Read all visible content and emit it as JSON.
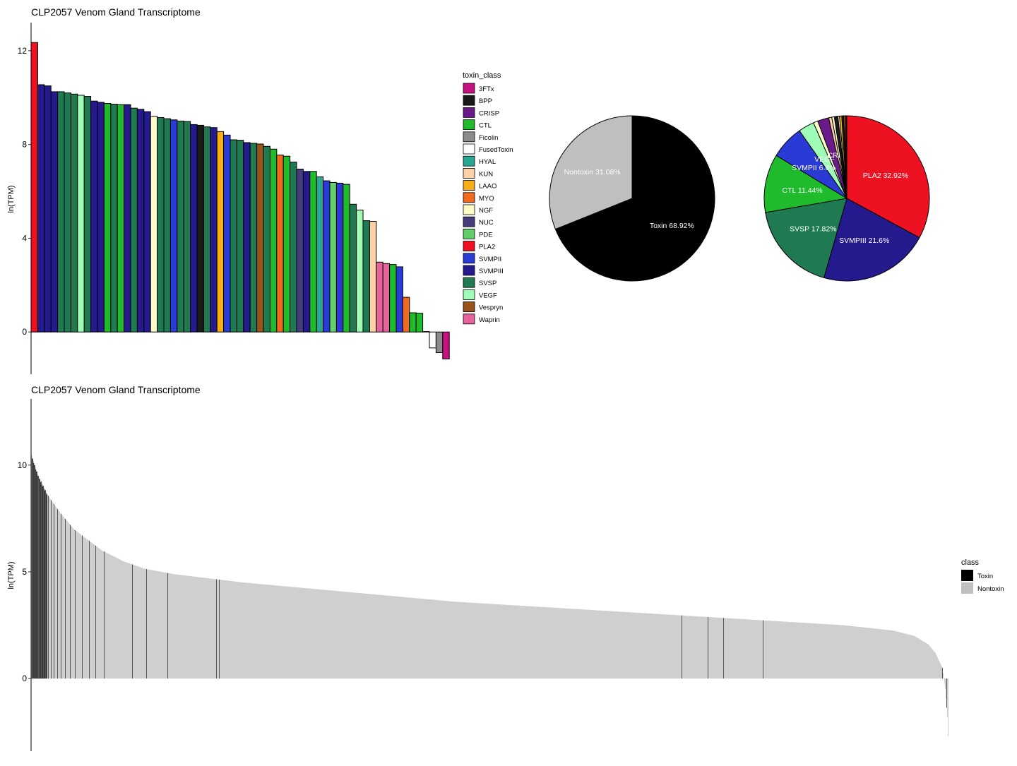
{
  "toxin_colors": {
    "3FTx": "#c4127f",
    "BPP": "#1a1a1a",
    "CRISP": "#6b1a8b",
    "CTL": "#1fbb2d",
    "Ficolin": "#8c8c8c",
    "FusedToxin": "#ffffff",
    "HYAL": "#2aa793",
    "KUN": "#fdd1a6",
    "LAAO": "#f7ad14",
    "MYO": "#f16a1e",
    "NGF": "#fefcc6",
    "NUC": "#463b7c",
    "PDE": "#62cf6b",
    "PLA2": "#ee1122",
    "SVMPII": "#2a3ad5",
    "SVMPIII": "#241a8e",
    "SVSP": "#1f7a52",
    "VEGF": "#9ffcb7",
    "Vespryn": "#98541d",
    "Waprin": "#e7639b"
  },
  "chart_data": [
    {
      "type": "bar",
      "title": "CLP2057 Venom Gland Transcriptome",
      "xlabel": "",
      "ylabel": "ln(TPM)",
      "ylim": [
        -1.8,
        13.2
      ],
      "yticks": [
        0,
        4,
        8,
        12
      ],
      "grid": false,
      "legend_title": "toxin_class",
      "legend_position": "right",
      "legend": [
        "3FTx",
        "BPP",
        "CRISP",
        "CTL",
        "Ficolin",
        "FusedToxin",
        "HYAL",
        "KUN",
        "LAAO",
        "MYO",
        "NGF",
        "NUC",
        "PDE",
        "PLA2",
        "SVMPII",
        "SVMPIII",
        "SVSP",
        "VEGF",
        "Vespryn",
        "Waprin"
      ],
      "bars": [
        {
          "class": "PLA2",
          "value": 12.35
        },
        {
          "class": "SVMPIII",
          "value": 10.55
        },
        {
          "class": "SVMPIII",
          "value": 10.5
        },
        {
          "class": "SVMPIII",
          "value": 10.25
        },
        {
          "class": "SVSP",
          "value": 10.25
        },
        {
          "class": "SVSP",
          "value": 10.2
        },
        {
          "class": "SVSP",
          "value": 10.15
        },
        {
          "class": "VEGF",
          "value": 10.1
        },
        {
          "class": "SVSP",
          "value": 10.05
        },
        {
          "class": "SVMPIII",
          "value": 9.85
        },
        {
          "class": "SVMPIII",
          "value": 9.8
        },
        {
          "class": "CTL",
          "value": 9.75
        },
        {
          "class": "SVSP",
          "value": 9.72
        },
        {
          "class": "CTL",
          "value": 9.7
        },
        {
          "class": "SVMPIII",
          "value": 9.7
        },
        {
          "class": "SVSP",
          "value": 9.55
        },
        {
          "class": "SVMPIII",
          "value": 9.5
        },
        {
          "class": "SVMPIII",
          "value": 9.4
        },
        {
          "class": "NGF",
          "value": 9.2
        },
        {
          "class": "SVSP",
          "value": 9.15
        },
        {
          "class": "SVSP",
          "value": 9.1
        },
        {
          "class": "SVMPII",
          "value": 9.05
        },
        {
          "class": "SVSP",
          "value": 9.0
        },
        {
          "class": "SVSP",
          "value": 8.98
        },
        {
          "class": "SVMPIII",
          "value": 8.85
        },
        {
          "class": "BPP",
          "value": 8.82
        },
        {
          "class": "SVSP",
          "value": 8.75
        },
        {
          "class": "SVMPIII",
          "value": 8.72
        },
        {
          "class": "LAAO",
          "value": 8.55
        },
        {
          "class": "SVMPII",
          "value": 8.4
        },
        {
          "class": "SVSP",
          "value": 8.2
        },
        {
          "class": "SVSP",
          "value": 8.18
        },
        {
          "class": "SVMPIII",
          "value": 8.08
        },
        {
          "class": "SVSP",
          "value": 8.05
        },
        {
          "class": "Vespryn",
          "value": 8.02
        },
        {
          "class": "SVSP",
          "value": 7.92
        },
        {
          "class": "CTL",
          "value": 7.8
        },
        {
          "class": "MYO",
          "value": 7.55
        },
        {
          "class": "CTL",
          "value": 7.5
        },
        {
          "class": "SVSP",
          "value": 7.25
        },
        {
          "class": "NUC",
          "value": 6.95
        },
        {
          "class": "SVMPIII",
          "value": 6.85
        },
        {
          "class": "CTL",
          "value": 6.85
        },
        {
          "class": "HYAL",
          "value": 6.62
        },
        {
          "class": "SVMPII",
          "value": 6.45
        },
        {
          "class": "PDE",
          "value": 6.38
        },
        {
          "class": "SVMPII",
          "value": 6.35
        },
        {
          "class": "CTL",
          "value": 6.3
        },
        {
          "class": "SVSP",
          "value": 5.45
        },
        {
          "class": "VEGF",
          "value": 5.2
        },
        {
          "class": "SVSP",
          "value": 4.75
        },
        {
          "class": "KUN",
          "value": 4.72
        },
        {
          "class": "Waprin",
          "value": 2.98
        },
        {
          "class": "Waprin",
          "value": 2.92
        },
        {
          "class": "CTL",
          "value": 2.88
        },
        {
          "class": "SVMPII",
          "value": 2.78
        },
        {
          "class": "MYO",
          "value": 1.48
        },
        {
          "class": "CTL",
          "value": 0.82
        },
        {
          "class": "CTL",
          "value": 0.8
        },
        {
          "class": "FusedToxin",
          "value": 0.02
        },
        {
          "class": "FusedToxin",
          "value": -0.68
        },
        {
          "class": "Ficolin",
          "value": -0.88
        },
        {
          "class": "3FTx",
          "value": -1.15
        }
      ]
    },
    {
      "type": "pie",
      "title": "",
      "slices": [
        {
          "label": "Toxin",
          "value": 68.92,
          "color": "#000000",
          "text": "Toxin 68.92%"
        },
        {
          "label": "Nontoxin",
          "value": 31.08,
          "color": "#bfbfbf",
          "text": "Nontoxin 31.08%"
        }
      ]
    },
    {
      "type": "pie",
      "title": "",
      "slices": [
        {
          "label": "PLA2",
          "value": 32.92,
          "text": "PLA2 32.92%",
          "show_label": true
        },
        {
          "label": "SVMPIII",
          "value": 21.6,
          "text": "SVMPIII 21.6%",
          "show_label": true
        },
        {
          "label": "SVSP",
          "value": 17.82,
          "text": "SVSP 17.82%",
          "show_label": true
        },
        {
          "label": "CTL",
          "value": 11.44,
          "text": "CTL 11.44%",
          "show_label": true
        },
        {
          "label": "SVMPII",
          "value": 6.6,
          "text": "SVMPII 6.6%",
          "show_label": true
        },
        {
          "label": "VEGF",
          "value": 3.1,
          "text": "VEGF",
          "show_label": true
        },
        {
          "label": "NGF",
          "value": 0.9,
          "show_label": false
        },
        {
          "label": "CRISP",
          "value": 2.2,
          "text": "CRI",
          "show_label": true
        },
        {
          "label": "KUN",
          "value": 0.6,
          "show_label": false
        },
        {
          "label": "NGF",
          "value": 0.5,
          "show_label": false
        },
        {
          "label": "BPP",
          "value": 0.7,
          "show_label": false
        },
        {
          "label": "FusedToxin",
          "value": 0.3,
          "show_label": false
        },
        {
          "label": "LAAO",
          "value": 0.45,
          "show_label": false
        },
        {
          "label": "BPP",
          "value": 0.35,
          "show_label": false
        },
        {
          "label": "MYO",
          "value": 0.25,
          "show_label": false
        },
        {
          "label": "LAAO",
          "value": 0.2,
          "show_label": false
        },
        {
          "label": "Vespryn",
          "value": 0.17,
          "show_label": false
        }
      ]
    },
    {
      "type": "bar",
      "title": "CLP2057 Venom Gland Transcriptome",
      "xlabel": "",
      "ylabel": "ln(TPM)",
      "ylim": [
        -3.4,
        13.1
      ],
      "yticks": [
        0,
        5,
        10
      ],
      "grid": false,
      "legend_title": "class",
      "legend_position": "right",
      "legend": [
        {
          "label": "Toxin",
          "color": "#000000"
        },
        {
          "label": "Nontoxin",
          "color": "#bfbfbf"
        }
      ],
      "n_bars": 1299,
      "curve_x": [
        0,
        3,
        10,
        25,
        40,
        60,
        80,
        100,
        130,
        160,
        200,
        300,
        400,
        600,
        800,
        1000,
        1150,
        1220,
        1250,
        1270,
        1280,
        1290,
        1294,
        1297,
        1298
      ],
      "curve_y": [
        10.5,
        10.2,
        9.5,
        8.5,
        7.8,
        7.0,
        6.5,
        6.0,
        5.5,
        5.15,
        4.9,
        4.5,
        4.2,
        3.6,
        3.2,
        2.8,
        2.5,
        2.25,
        2.0,
        1.6,
        1.2,
        0.5,
        -0.5,
        -1.8,
        -2.7
      ],
      "toxin_lines": [
        0,
        2,
        5,
        8,
        10,
        12,
        14,
        17,
        20,
        24,
        28,
        32,
        37,
        42,
        48,
        55,
        62,
        72,
        82,
        91,
        103,
        143,
        163,
        193,
        262,
        266,
        921,
        958,
        980,
        1036,
        1290,
        1296
      ]
    }
  ]
}
